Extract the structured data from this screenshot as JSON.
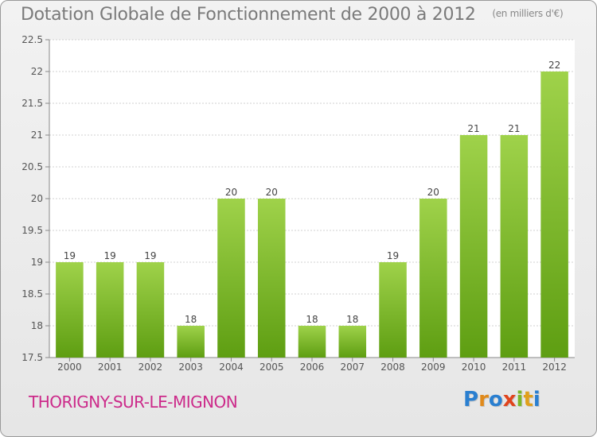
{
  "header": {
    "title": "Dotation Globale de Fonctionnement de 2000 à 2012",
    "subtitle": "(en milliers d'€)"
  },
  "footer": {
    "city": "THORIGNY-SUR-LE-MIGNON",
    "logo_letters": [
      "P",
      "r",
      "o",
      "x",
      "i",
      "t",
      "i"
    ],
    "logo_colors": [
      "#2a7fd0",
      "#e08a1c",
      "#2a7fd0",
      "#e0441c",
      "#7ab828",
      "#e0a01c",
      "#2a7fd0"
    ]
  },
  "colors": {
    "bar_top": "#9fd24a",
    "bar_bottom": "#5e9e12",
    "grid": "#d0d0d0"
  },
  "chart_data": {
    "type": "bar",
    "title": "Dotation Globale de Fonctionnement de 2000 à 2012",
    "subtitle": "(en milliers d'€)",
    "categories": [
      "2000",
      "2001",
      "2002",
      "2003",
      "2004",
      "2005",
      "2006",
      "2007",
      "2008",
      "2009",
      "2010",
      "2011",
      "2012"
    ],
    "values": [
      19,
      19,
      19,
      18,
      20,
      20,
      18,
      18,
      19,
      20,
      21,
      21,
      22
    ],
    "ylim": [
      17.5,
      22.5
    ],
    "yticks": [
      17.5,
      18,
      18.5,
      19,
      19.5,
      20,
      20.5,
      21,
      21.5,
      22,
      22.5
    ],
    "grid": true,
    "xlabel": "",
    "ylabel": ""
  }
}
